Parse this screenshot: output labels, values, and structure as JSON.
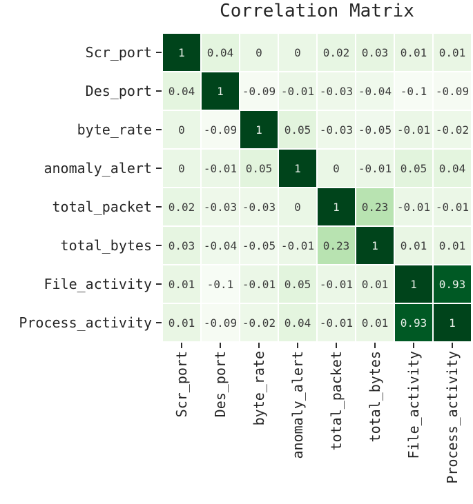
{
  "chart_data": {
    "type": "heatmap",
    "title": "Correlation Matrix",
    "categories": [
      "Scr_port",
      "Des_port",
      "byte_rate",
      "anomaly_alert",
      "total_packet",
      "total_bytes",
      "File_activity",
      "Process_activity"
    ],
    "matrix": [
      [
        1,
        0.04,
        0,
        0,
        0.02,
        0.03,
        0.01,
        0.01
      ],
      [
        0.04,
        1,
        -0.09,
        -0.01,
        -0.03,
        -0.04,
        -0.1,
        -0.09
      ],
      [
        0,
        -0.09,
        1,
        0.05,
        -0.03,
        -0.05,
        -0.01,
        -0.02
      ],
      [
        0,
        -0.01,
        0.05,
        1,
        0,
        -0.01,
        0.05,
        0.04
      ],
      [
        0.02,
        -0.03,
        -0.03,
        0,
        1,
        0.23,
        -0.01,
        -0.01
      ],
      [
        0.03,
        -0.04,
        -0.05,
        -0.01,
        0.23,
        1,
        0.01,
        0.01
      ],
      [
        0.01,
        -0.1,
        -0.01,
        0.05,
        -0.01,
        0.01,
        1,
        0.93
      ],
      [
        0.01,
        -0.09,
        -0.02,
        0.04,
        -0.01,
        0.01,
        0.93,
        1
      ]
    ],
    "vmin": -0.1,
    "vmax": 1,
    "colormap_name": "Greens",
    "colormap_anchors": [
      "#f7fcf5",
      "#e5f5e0",
      "#c7e9c0",
      "#a1d99b",
      "#74c476",
      "#41ab5d",
      "#238b45",
      "#006d2c",
      "#00441b"
    ],
    "annotation_color_dark": "#3a3a3a",
    "annotation_color_light": "#ebf1eb",
    "axis_text_color": "#262626",
    "tick_color": "#2b2b2b",
    "grid_lines": "white",
    "legend": "none",
    "colorbar": "none"
  }
}
